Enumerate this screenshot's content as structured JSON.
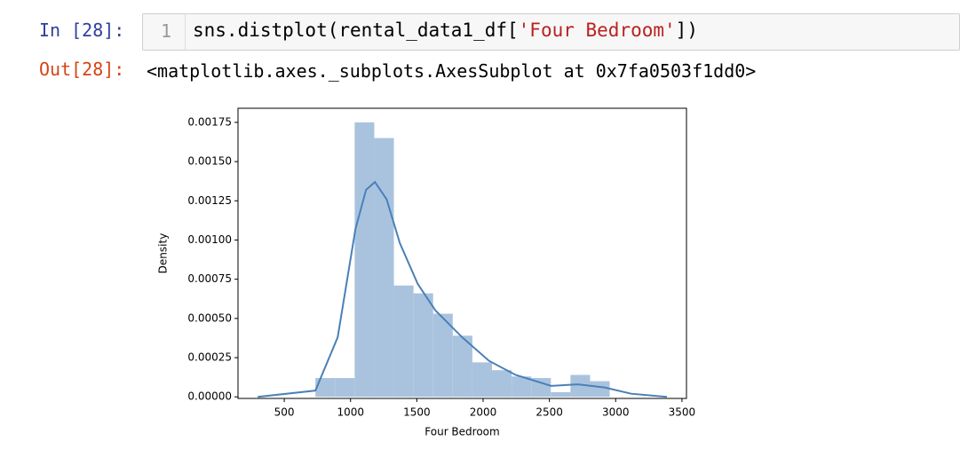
{
  "cell": {
    "in_prompt": "In [28]:",
    "line_number": "1",
    "code_parts": [
      "sns.distplot(rental_data1_df[",
      "'Four Bedroom'",
      "])"
    ],
    "out_prompt": "Out[28]:",
    "output": "<matplotlib.axes._subplots.AxesSubplot at 0x7fa0503f1dd0>"
  },
  "chart_data": {
    "type": "histogram",
    "xlabel": "Four Bedroom",
    "ylabel": "Density",
    "bins": [
      735,
      883,
      1031,
      1179,
      1327,
      1475,
      1623,
      1771,
      1919,
      2067,
      2215,
      2363,
      2511,
      2659,
      2807,
      2955
    ],
    "values": [
      0.00012,
      0.00012,
      0.00175,
      0.00165,
      0.00071,
      0.00066,
      0.00053,
      0.00039,
      0.00022,
      0.00017,
      0.00013,
      0.00012,
      3e-05,
      0.00014,
      0.0001
    ],
    "color": "#a9c3df",
    "kde": {
      "color": "#4a80b6",
      "x": [
        300,
        735,
        903,
        1037,
        1117,
        1184,
        1272,
        1372,
        1507,
        1641,
        1842,
        2044,
        2245,
        2513,
        2715,
        2916,
        3117,
        3386
      ],
      "values": [
        0,
        4e-05,
        0.00038,
        0.00107,
        0.00132,
        0.00137,
        0.00126,
        0.00098,
        0.00072,
        0.00055,
        0.00038,
        0.00023,
        0.00014,
        7e-05,
        8e-05,
        6e-05,
        2e-05,
        0
      ]
    },
    "xlim": [
      151,
      3534
    ],
    "ylim": [
      -1e-05,
      0.00184
    ],
    "xticks": [
      500,
      1000,
      1500,
      2000,
      2500,
      3000,
      3500
    ],
    "yticks": [
      {
        "value": 0,
        "label": "0.00000"
      },
      {
        "value": 0.00025,
        "label": "0.00025"
      },
      {
        "value": 0.0005,
        "label": "0.00050"
      },
      {
        "value": 0.00075,
        "label": "0.00075"
      },
      {
        "value": 0.001,
        "label": "0.00100"
      },
      {
        "value": 0.00125,
        "label": "0.00125"
      },
      {
        "value": 0.0015,
        "label": "0.00150"
      },
      {
        "value": 0.00175,
        "label": "0.00175"
      }
    ]
  }
}
